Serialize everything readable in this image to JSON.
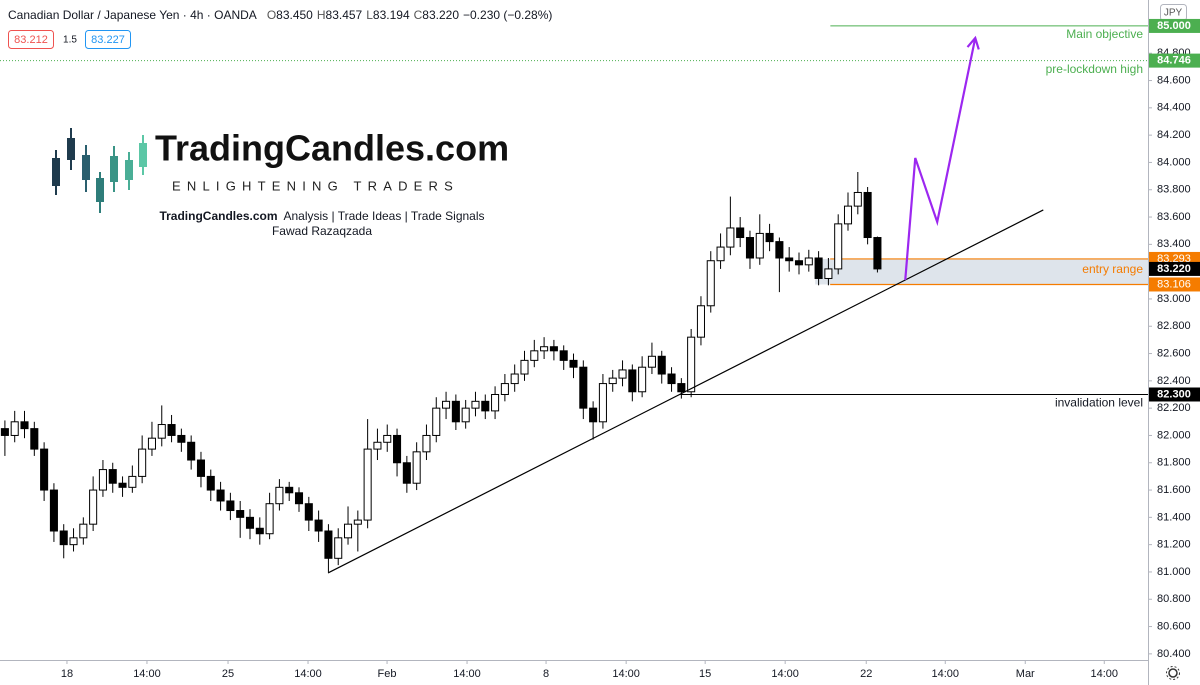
{
  "header": {
    "title": "Canadian Dollar / Japanese Yen · 4h · OANDA",
    "ohlc": [
      {
        "key": "O",
        "value": "83.450"
      },
      {
        "key": "H",
        "value": "83.457"
      },
      {
        "key": "L",
        "value": "83.194"
      },
      {
        "key": "C",
        "value": "83.220"
      }
    ],
    "change": "−0.230 (−0.28%)",
    "bid": "83.212",
    "spread": "1.5",
    "ask": "83.227",
    "currency": "JPY"
  },
  "branding": {
    "name": "TradingCandles.com",
    "tagline": "ENLIGHTENING TRADERS",
    "site": "TradingCandles.com",
    "services": "Analysis | Trade Ideas | Trade Signals",
    "author": "Fawad Razaqzada"
  },
  "chart_data": {
    "type": "candlestick",
    "xlim": [
      -0.5,
      116.6
    ],
    "xticks": [
      {
        "value": 6.33,
        "label": "18"
      },
      {
        "value": 14.49,
        "label": "14:00"
      },
      {
        "value": 22.76,
        "label": "25"
      },
      {
        "value": 30.92,
        "label": "14:00"
      },
      {
        "value": 38.98,
        "label": "Feb"
      },
      {
        "value": 47.14,
        "label": "14:00"
      },
      {
        "value": 55.2,
        "label": "8"
      },
      {
        "value": 63.37,
        "label": "14:00"
      },
      {
        "value": 71.43,
        "label": "15"
      },
      {
        "value": 79.59,
        "label": "14:00"
      },
      {
        "value": 87.86,
        "label": "22"
      },
      {
        "value": 95.92,
        "label": "14:00"
      },
      {
        "value": 104.08,
        "label": "Mar"
      },
      {
        "value": 112.14,
        "label": "14:00"
      }
    ],
    "ylim": [
      80.355,
      85.19
    ],
    "yticks": [
      {
        "value": 80.4,
        "label": "80.400"
      },
      {
        "value": 80.6,
        "label": "80.600"
      },
      {
        "value": 80.8,
        "label": "80.800"
      },
      {
        "value": 81.0,
        "label": "81.000"
      },
      {
        "value": 81.2,
        "label": "81.200"
      },
      {
        "value": 81.4,
        "label": "81.400"
      },
      {
        "value": 81.6,
        "label": "81.600"
      },
      {
        "value": 81.8,
        "label": "81.800"
      },
      {
        "value": 82.0,
        "label": "82.000"
      },
      {
        "value": 82.2,
        "label": "82.200"
      },
      {
        "value": 82.4,
        "label": "82.400"
      },
      {
        "value": 82.6,
        "label": "82.600"
      },
      {
        "value": 82.8,
        "label": "82.800"
      },
      {
        "value": 83.0,
        "label": "83.000"
      },
      {
        "value": 83.4,
        "label": "83.400"
      },
      {
        "value": 83.6,
        "label": "83.600"
      },
      {
        "value": 83.8,
        "label": "83.800"
      },
      {
        "value": 84.0,
        "label": "84.000"
      },
      {
        "value": 84.2,
        "label": "84.200"
      },
      {
        "value": 84.4,
        "label": "84.400"
      },
      {
        "value": 84.6,
        "label": "84.600"
      },
      {
        "value": 84.8,
        "label": "84.800"
      }
    ],
    "up_color": "#ffffff",
    "down_color": "#000000",
    "wick_color": "#000000",
    "open": [
      82.05,
      82.0,
      82.1,
      82.05,
      81.9,
      81.6,
      81.3,
      81.2,
      81.25,
      81.35,
      81.6,
      81.75,
      81.65,
      81.62,
      81.7,
      81.9,
      81.98,
      82.08,
      82.0,
      81.95,
      81.82,
      81.7,
      81.6,
      81.52,
      81.45,
      81.4,
      81.32,
      81.28,
      81.5,
      81.62,
      81.58,
      81.5,
      81.38,
      81.3,
      81.1,
      81.25,
      81.35,
      81.38,
      81.9,
      81.95,
      82.0,
      81.8,
      81.65,
      81.88,
      82.0,
      82.2,
      82.25,
      82.1,
      82.2,
      82.25,
      82.18,
      82.3,
      82.38,
      82.45,
      82.55,
      82.62,
      82.65,
      82.62,
      82.55,
      82.5,
      82.2,
      82.1,
      82.38,
      82.42,
      82.48,
      82.32,
      82.5,
      82.58,
      82.45,
      82.38,
      82.32,
      82.72,
      82.95,
      83.28,
      83.38,
      83.52,
      83.45,
      83.3,
      83.48,
      83.42,
      83.3,
      83.28,
      83.25,
      83.3,
      83.15,
      83.22,
      83.55,
      83.68,
      83.78,
      83.45
    ],
    "high": [
      82.11,
      82.18,
      82.18,
      82.1,
      81.95,
      81.65,
      81.35,
      81.32,
      81.4,
      81.7,
      81.82,
      81.8,
      81.7,
      81.78,
      82.0,
      82.1,
      82.22,
      82.15,
      82.05,
      82.0,
      81.88,
      81.75,
      81.66,
      81.58,
      81.52,
      81.46,
      81.4,
      81.58,
      81.68,
      81.66,
      81.62,
      81.55,
      81.45,
      81.35,
      81.32,
      81.48,
      81.45,
      82.12,
      82.05,
      82.08,
      82.05,
      81.85,
      81.95,
      82.08,
      82.28,
      82.32,
      82.3,
      82.26,
      82.32,
      82.3,
      82.36,
      82.45,
      82.52,
      82.62,
      82.7,
      82.72,
      82.7,
      82.66,
      82.6,
      82.55,
      82.25,
      82.45,
      82.48,
      82.55,
      82.52,
      82.58,
      82.68,
      82.62,
      82.5,
      82.42,
      82.78,
      83.02,
      83.35,
      83.48,
      83.75,
      83.6,
      83.5,
      83.62,
      83.55,
      83.45,
      83.38,
      83.34,
      83.36,
      83.35,
      83.3,
      83.62,
      83.78,
      83.93,
      83.82,
      83.457
    ],
    "low": [
      81.85,
      81.95,
      81.98,
      81.85,
      81.52,
      81.22,
      81.1,
      81.15,
      81.2,
      81.3,
      81.55,
      81.58,
      81.55,
      81.58,
      81.65,
      81.85,
      81.92,
      81.95,
      81.88,
      81.75,
      81.62,
      81.52,
      81.45,
      81.38,
      81.25,
      81.24,
      81.2,
      81.24,
      81.45,
      81.52,
      81.44,
      81.3,
      81.22,
      81.0,
      81.05,
      81.2,
      81.15,
      81.32,
      81.82,
      81.88,
      81.7,
      81.58,
      81.6,
      81.82,
      81.95,
      82.12,
      82.04,
      82.05,
      82.14,
      82.12,
      82.12,
      82.25,
      82.32,
      82.4,
      82.5,
      82.56,
      82.55,
      82.48,
      82.42,
      82.12,
      81.97,
      82.05,
      82.32,
      82.36,
      82.25,
      82.28,
      82.45,
      82.38,
      82.32,
      82.27,
      82.28,
      82.66,
      82.9,
      83.22,
      83.32,
      83.38,
      83.22,
      83.25,
      83.35,
      83.05,
      83.2,
      83.18,
      83.2,
      83.1,
      83.1,
      83.18,
      83.5,
      83.62,
      83.4,
      83.194
    ],
    "close": [
      82.0,
      82.1,
      82.05,
      81.9,
      81.6,
      81.3,
      81.2,
      81.25,
      81.35,
      81.6,
      81.75,
      81.65,
      81.62,
      81.7,
      81.9,
      81.98,
      82.08,
      82.0,
      81.95,
      81.82,
      81.7,
      81.6,
      81.52,
      81.45,
      81.4,
      81.32,
      81.28,
      81.5,
      81.62,
      81.58,
      81.5,
      81.38,
      81.3,
      81.1,
      81.25,
      81.35,
      81.38,
      81.9,
      81.95,
      82.0,
      81.8,
      81.65,
      81.88,
      82.0,
      82.2,
      82.25,
      82.1,
      82.2,
      82.25,
      82.18,
      82.3,
      82.38,
      82.45,
      82.55,
      82.62,
      82.65,
      82.62,
      82.55,
      82.5,
      82.2,
      82.1,
      82.38,
      82.42,
      82.48,
      82.32,
      82.5,
      82.58,
      82.45,
      82.38,
      82.32,
      82.72,
      82.95,
      83.28,
      83.38,
      83.52,
      83.45,
      83.3,
      83.48,
      83.42,
      83.3,
      83.28,
      83.25,
      83.3,
      83.15,
      83.22,
      83.55,
      83.68,
      83.78,
      83.45,
      83.22
    ],
    "levels": [
      {
        "name": "Main objective",
        "value": 85.0,
        "label": "85.000",
        "color": "#4caf50",
        "style": "solid",
        "from": 84.2
      },
      {
        "name": "pre-lockdown high",
        "value": 84.746,
        "label": "84.746",
        "color": "#4caf50",
        "style": "dotted",
        "from": -0.5
      },
      {
        "name": "invalidation level",
        "value": 82.3,
        "label": "82.300",
        "color": "#000000",
        "style": "solid",
        "from": 68.9
      }
    ],
    "entry_zone": {
      "name": "entry range",
      "top": {
        "value": 83.293,
        "label": "83.293"
      },
      "bottom": {
        "value": 83.106,
        "label": "83.106"
      },
      "from": 82.65,
      "color": "#f57c00",
      "fill": "#d6dde6"
    },
    "last_price": {
      "value": 83.22,
      "label": "83.220"
    },
    "trendline": {
      "x": [
        32.96,
        105.92
      ],
      "y": [
        80.993,
        83.652
      ],
      "color": "#000000"
    },
    "projection": {
      "x": [
        91.84,
        92.86,
        95.1,
        98.98
      ],
      "y": [
        83.139,
        84.033,
        83.564,
        84.912
      ],
      "color": "#9c27f0"
    }
  }
}
